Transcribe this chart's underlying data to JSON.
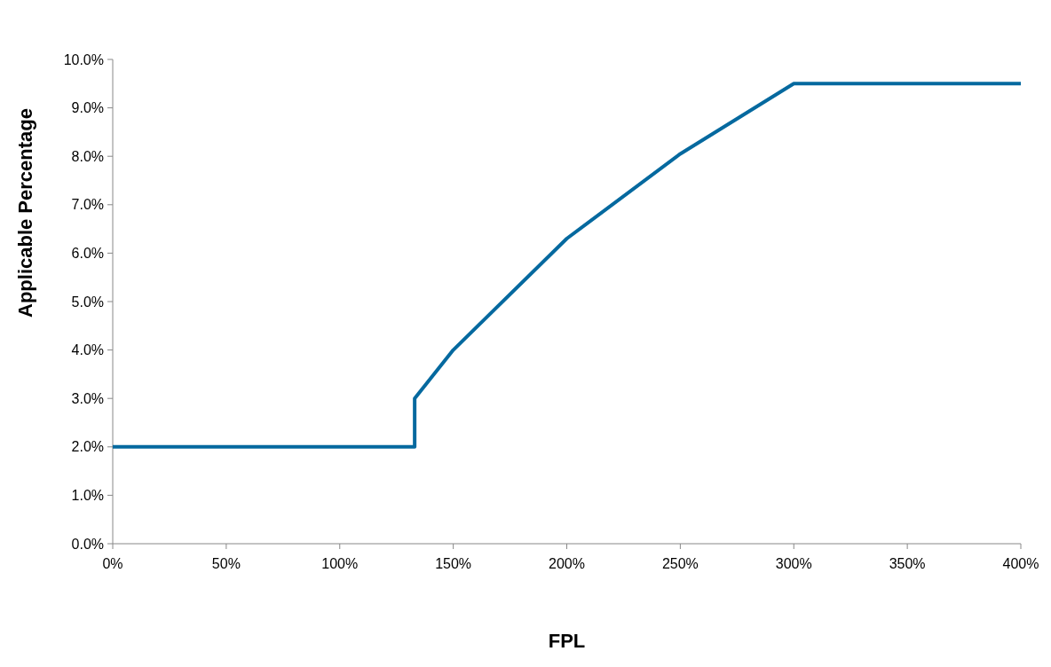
{
  "chart_data": {
    "type": "line",
    "xlabel": "FPL",
    "ylabel": "Applicable Percentage",
    "x": [
      0,
      133,
      133,
      150,
      200,
      250,
      300,
      400
    ],
    "series": [
      {
        "color": "#05699f",
        "values": [
          2,
          2,
          3,
          4,
          6.3,
          8.05,
          9.5,
          9.5
        ]
      }
    ],
    "xlim": [
      0,
      400
    ],
    "xticks": [
      {
        "value": 0,
        "label": "0%"
      },
      {
        "value": 50,
        "label": "50%"
      },
      {
        "value": 100,
        "label": "100%"
      },
      {
        "value": 150,
        "label": "150%"
      },
      {
        "value": 200,
        "label": "200%"
      },
      {
        "value": 250,
        "label": "250%"
      },
      {
        "value": 300,
        "label": "300%"
      },
      {
        "value": 350,
        "label": "350%"
      },
      {
        "value": 400,
        "label": "400%"
      }
    ],
    "ylim": [
      0,
      10
    ],
    "yticks": [
      {
        "value": 0,
        "label": "0.0%"
      },
      {
        "value": 1,
        "label": "1.0%"
      },
      {
        "value": 2,
        "label": "2.0%"
      },
      {
        "value": 3,
        "label": "3.0%"
      },
      {
        "value": 4,
        "label": "4.0%"
      },
      {
        "value": 5,
        "label": "5.0%"
      },
      {
        "value": 6,
        "label": "6.0%"
      },
      {
        "value": 7,
        "label": "7.0%"
      },
      {
        "value": 8,
        "label": "8.0%"
      },
      {
        "value": 9,
        "label": "9.0%"
      },
      {
        "value": 10,
        "label": "10.0%"
      }
    ],
    "grid": false,
    "marker": "none",
    "line_style": "solid"
  }
}
